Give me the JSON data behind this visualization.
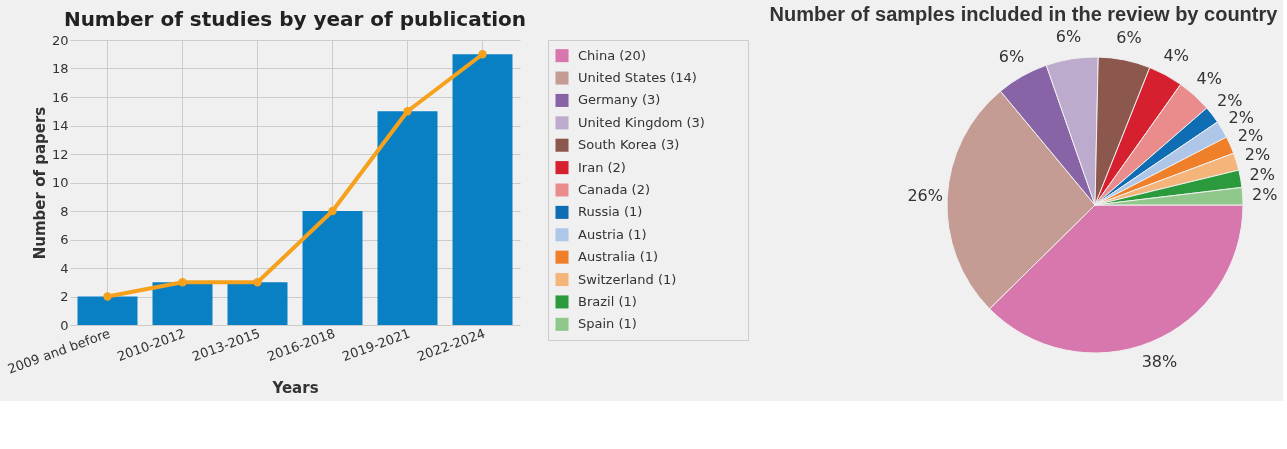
{
  "chart_data": [
    {
      "type": "bar",
      "title": "Number of studies by year of publication",
      "xlabel": "Years",
      "ylabel": "Number of papers",
      "categories": [
        "2009 and before",
        "2010-2012",
        "2013-2015",
        "2016-2018",
        "2019-2021",
        "2022-2024"
      ],
      "series": [
        {
          "type": "bar",
          "color": "#0a80c4",
          "values": [
            2,
            3,
            3,
            8,
            15,
            19
          ]
        },
        {
          "type": "line",
          "color": "#f5a11c",
          "values": [
            2,
            3,
            3,
            8,
            15,
            19
          ],
          "marker": "circle"
        }
      ],
      "ylim": [
        0,
        20
      ],
      "yticks": [
        0,
        2,
        4,
        6,
        8,
        10,
        12,
        14,
        16,
        18,
        20
      ],
      "grid": true
    },
    {
      "type": "pie",
      "title": "Number of samples included in the review by country",
      "legend": "left",
      "categories": [
        "China (20)",
        "United States (14)",
        "Germany (3)",
        "United Kingdom (3)",
        "South Korea (3)",
        "Iran (2)",
        "Canada (2)",
        "Russia (1)",
        "Austria (1)",
        "Australia (1)",
        "Switzerland (1)",
        "Brazil (1)",
        "Spain (1)"
      ],
      "values": [
        37.7,
        26.4,
        5.7,
        5.7,
        5.7,
        3.8,
        3.8,
        1.9,
        1.9,
        1.9,
        1.9,
        1.9,
        1.9
      ],
      "value_labels": [
        "38%",
        "26%",
        "6%",
        "6%",
        "6%",
        "4%",
        "4%",
        "2%",
        "2%",
        "2%",
        "2%",
        "2%",
        "2%"
      ],
      "colors": [
        "#d877ad",
        "#c49c94",
        "#8864a6",
        "#bdabcd",
        "#8c574d",
        "#d61f2f",
        "#ea8c8c",
        "#0f6db3",
        "#aec7e8",
        "#f07f2a",
        "#f5b57a",
        "#2a9a3c",
        "#8fc88a"
      ]
    }
  ]
}
